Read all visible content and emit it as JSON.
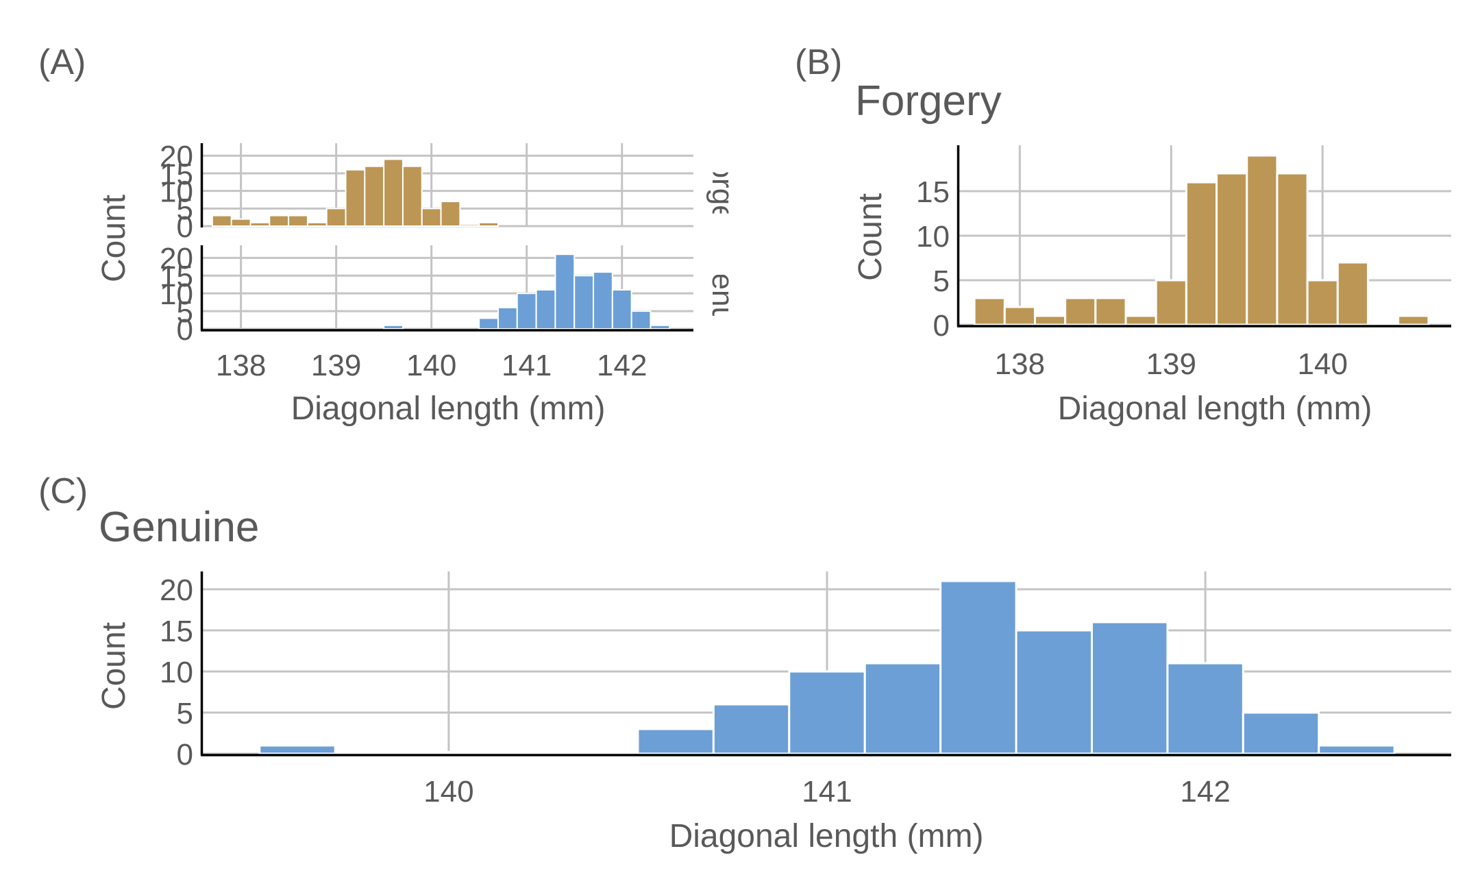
{
  "colors": {
    "forgery": "#bc9655",
    "genuine": "#6b9fd6",
    "grid": "#c4c4c4",
    "axis": "#000000",
    "text": "#595959"
  },
  "chart_data": [
    {
      "panel": "(A)",
      "type": "bar",
      "title": "",
      "xlabel": "Diagonal length (mm)",
      "ylabel": "Count",
      "xlim": [
        137.6,
        142.75
      ],
      "xticks": [
        "138",
        "139",
        "140",
        "141",
        "142"
      ],
      "facets": [
        {
          "strip": "forge",
          "color": "forgery",
          "ylim": [
            0,
            22
          ],
          "yticks": [
            "0",
            "5",
            "10",
            "15",
            "20"
          ],
          "bins": [
            {
              "x0": 137.7,
              "x1": 137.9,
              "y": 3
            },
            {
              "x0": 137.9,
              "x1": 138.1,
              "y": 2
            },
            {
              "x0": 138.1,
              "x1": 138.3,
              "y": 1
            },
            {
              "x0": 138.3,
              "x1": 138.5,
              "y": 3
            },
            {
              "x0": 138.5,
              "x1": 138.7,
              "y": 3
            },
            {
              "x0": 138.7,
              "x1": 138.9,
              "y": 1
            },
            {
              "x0": 138.9,
              "x1": 139.1,
              "y": 5
            },
            {
              "x0": 139.1,
              "x1": 139.3,
              "y": 16
            },
            {
              "x0": 139.3,
              "x1": 139.5,
              "y": 17
            },
            {
              "x0": 139.5,
              "x1": 139.7,
              "y": 19
            },
            {
              "x0": 139.7,
              "x1": 139.9,
              "y": 17
            },
            {
              "x0": 139.9,
              "x1": 140.1,
              "y": 5
            },
            {
              "x0": 140.1,
              "x1": 140.3,
              "y": 7
            },
            {
              "x0": 140.3,
              "x1": 140.5,
              "y": 0
            },
            {
              "x0": 140.5,
              "x1": 140.7,
              "y": 1
            }
          ]
        },
        {
          "strip": "genu",
          "color": "genuine",
          "ylim": [
            0,
            22
          ],
          "yticks": [
            "0",
            "5",
            "10",
            "15",
            "20"
          ],
          "bins": [
            {
              "x0": 139.5,
              "x1": 139.7,
              "y": 1
            },
            {
              "x0": 140.5,
              "x1": 140.7,
              "y": 3
            },
            {
              "x0": 140.7,
              "x1": 140.9,
              "y": 6
            },
            {
              "x0": 140.9,
              "x1": 141.1,
              "y": 10
            },
            {
              "x0": 141.1,
              "x1": 141.3,
              "y": 11
            },
            {
              "x0": 141.3,
              "x1": 141.5,
              "y": 21
            },
            {
              "x0": 141.5,
              "x1": 141.7,
              "y": 15
            },
            {
              "x0": 141.7,
              "x1": 141.9,
              "y": 16
            },
            {
              "x0": 141.9,
              "x1": 142.1,
              "y": 11
            },
            {
              "x0": 142.1,
              "x1": 142.3,
              "y": 5
            },
            {
              "x0": 142.3,
              "x1": 142.5,
              "y": 1
            }
          ]
        }
      ]
    },
    {
      "panel": "(B)",
      "type": "bar",
      "title": "Forgery",
      "xlabel": "Diagonal length (mm)",
      "ylabel": "Count",
      "color": "forgery",
      "xlim": [
        137.6,
        140.85
      ],
      "ylim": [
        0,
        20
      ],
      "xticks": [
        "138",
        "139",
        "140"
      ],
      "yticks": [
        "0",
        "5",
        "10",
        "15"
      ],
      "bins": [
        {
          "x0": 137.7,
          "x1": 137.9,
          "y": 3
        },
        {
          "x0": 137.9,
          "x1": 138.1,
          "y": 2
        },
        {
          "x0": 138.1,
          "x1": 138.3,
          "y": 1
        },
        {
          "x0": 138.3,
          "x1": 138.5,
          "y": 3
        },
        {
          "x0": 138.5,
          "x1": 138.7,
          "y": 3
        },
        {
          "x0": 138.7,
          "x1": 138.9,
          "y": 1
        },
        {
          "x0": 138.9,
          "x1": 139.1,
          "y": 5
        },
        {
          "x0": 139.1,
          "x1": 139.3,
          "y": 16
        },
        {
          "x0": 139.3,
          "x1": 139.5,
          "y": 17
        },
        {
          "x0": 139.5,
          "x1": 139.7,
          "y": 19
        },
        {
          "x0": 139.7,
          "x1": 139.9,
          "y": 17
        },
        {
          "x0": 139.9,
          "x1": 140.1,
          "y": 5
        },
        {
          "x0": 140.1,
          "x1": 140.3,
          "y": 7
        },
        {
          "x0": 140.3,
          "x1": 140.5,
          "y": 0
        },
        {
          "x0": 140.5,
          "x1": 140.7,
          "y": 1
        }
      ]
    },
    {
      "panel": "(C)",
      "type": "bar",
      "title": "Genuine",
      "xlabel": "Diagonal length (mm)",
      "ylabel": "Count",
      "color": "genuine",
      "xlim": [
        139.35,
        142.65
      ],
      "ylim": [
        0,
        22
      ],
      "xticks": [
        "140",
        "141",
        "142"
      ],
      "yticks": [
        "0",
        "5",
        "10",
        "15",
        "20"
      ],
      "bins": [
        {
          "x0": 139.5,
          "x1": 139.7,
          "y": 1
        },
        {
          "x0": 139.7,
          "x1": 139.9,
          "y": 0
        },
        {
          "x0": 139.9,
          "x1": 140.1,
          "y": 0
        },
        {
          "x0": 140.1,
          "x1": 140.3,
          "y": 0
        },
        {
          "x0": 140.3,
          "x1": 140.5,
          "y": 0
        },
        {
          "x0": 140.5,
          "x1": 140.7,
          "y": 3
        },
        {
          "x0": 140.7,
          "x1": 140.9,
          "y": 6
        },
        {
          "x0": 140.9,
          "x1": 141.1,
          "y": 10
        },
        {
          "x0": 141.1,
          "x1": 141.3,
          "y": 11
        },
        {
          "x0": 141.3,
          "x1": 141.5,
          "y": 21
        },
        {
          "x0": 141.5,
          "x1": 141.7,
          "y": 15
        },
        {
          "x0": 141.7,
          "x1": 141.9,
          "y": 16
        },
        {
          "x0": 141.9,
          "x1": 142.1,
          "y": 11
        },
        {
          "x0": 142.1,
          "x1": 142.3,
          "y": 5
        },
        {
          "x0": 142.3,
          "x1": 142.5,
          "y": 1
        }
      ]
    }
  ]
}
